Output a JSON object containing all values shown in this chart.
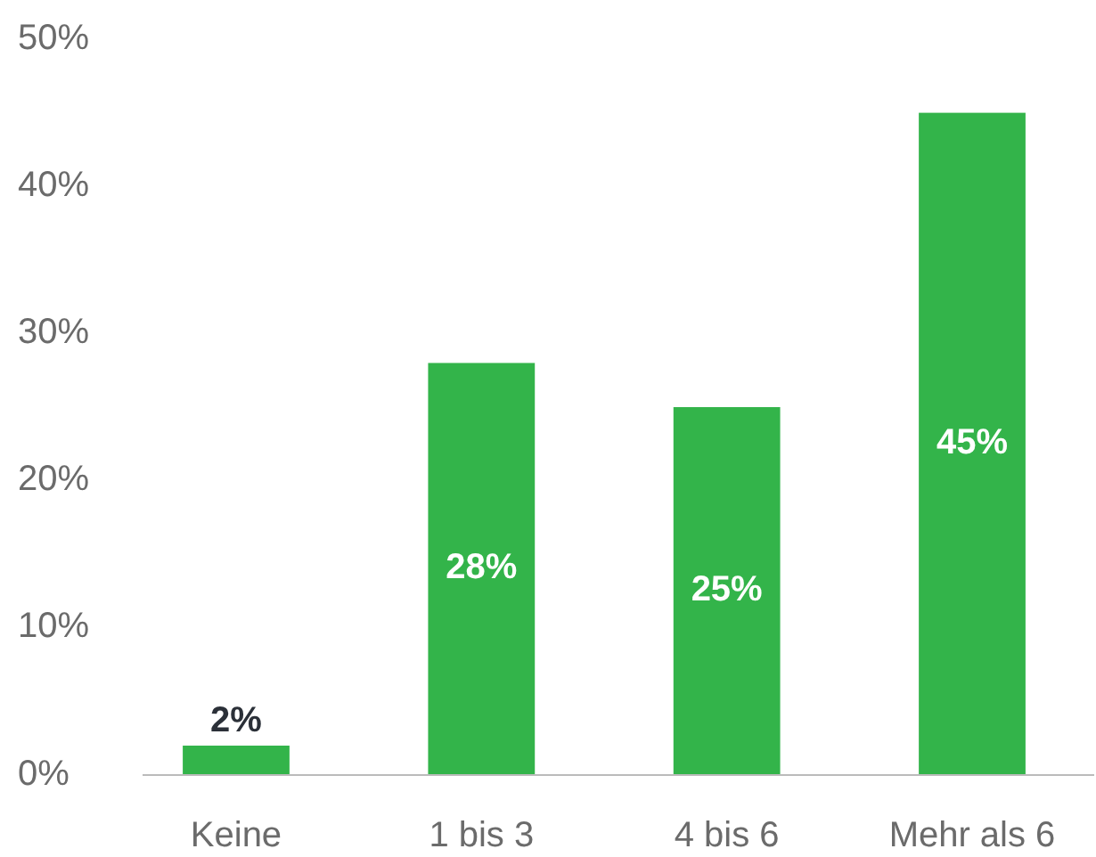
{
  "chart_data": {
    "type": "bar",
    "categories": [
      "Keine",
      "1 bis 3",
      "4 bis 6",
      "Mehr als 6"
    ],
    "values": [
      2,
      28,
      25,
      45
    ],
    "color": "#33b44a",
    "value_labels": [
      "2%",
      "28%",
      "25%",
      "45%"
    ],
    "ylim": [
      0,
      50
    ],
    "yticks": [
      {
        "value": 0,
        "label": "0%"
      },
      {
        "value": 10,
        "label": "10%"
      },
      {
        "value": 20,
        "label": "20%"
      },
      {
        "value": 30,
        "label": "30%"
      },
      {
        "value": 40,
        "label": "40%"
      },
      {
        "value": 50,
        "label": "50%"
      }
    ],
    "grid": false
  }
}
